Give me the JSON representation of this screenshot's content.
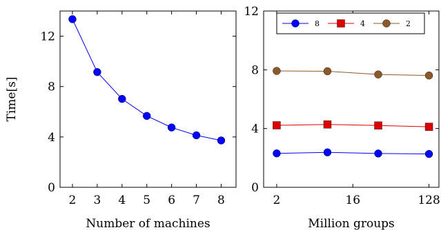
{
  "chart_data": [
    {
      "type": "line",
      "ylabel": "Time[s]",
      "xlabel": "Number of machines",
      "x": [
        2,
        3,
        4,
        5,
        6,
        7,
        8
      ],
      "xlim": [
        1.5,
        8.6
      ],
      "ylim": [
        0,
        14
      ],
      "yticks": [
        0,
        4,
        8,
        12
      ],
      "series": [
        {
          "name": "",
          "color": "#0000ff",
          "marker": "circle",
          "values": [
            13.35,
            9.15,
            7.02,
            5.67,
            4.75,
            4.13,
            3.72
          ]
        }
      ],
      "grid": false
    },
    {
      "type": "line",
      "xlabel": "Million groups",
      "x_scale": "log2",
      "x": [
        2,
        8,
        32,
        128
      ],
      "xticks": [
        2,
        16,
        128
      ],
      "xlim": [
        1.4,
        168
      ],
      "ylim": [
        0,
        12
      ],
      "yticks": [
        0,
        4,
        8,
        12
      ],
      "series": [
        {
          "name": "8",
          "color": "#0000ff",
          "marker": "circle",
          "values": [
            2.31,
            2.38,
            2.3,
            2.27
          ]
        },
        {
          "name": "4",
          "color": "#dd0000",
          "marker": "square",
          "values": [
            4.22,
            4.28,
            4.21,
            4.12
          ]
        },
        {
          "name": "2",
          "color": "#8b5a2b",
          "marker": "circle",
          "values": [
            7.92,
            7.9,
            7.68,
            7.61
          ]
        }
      ],
      "legend": "top-right",
      "grid": false
    }
  ]
}
